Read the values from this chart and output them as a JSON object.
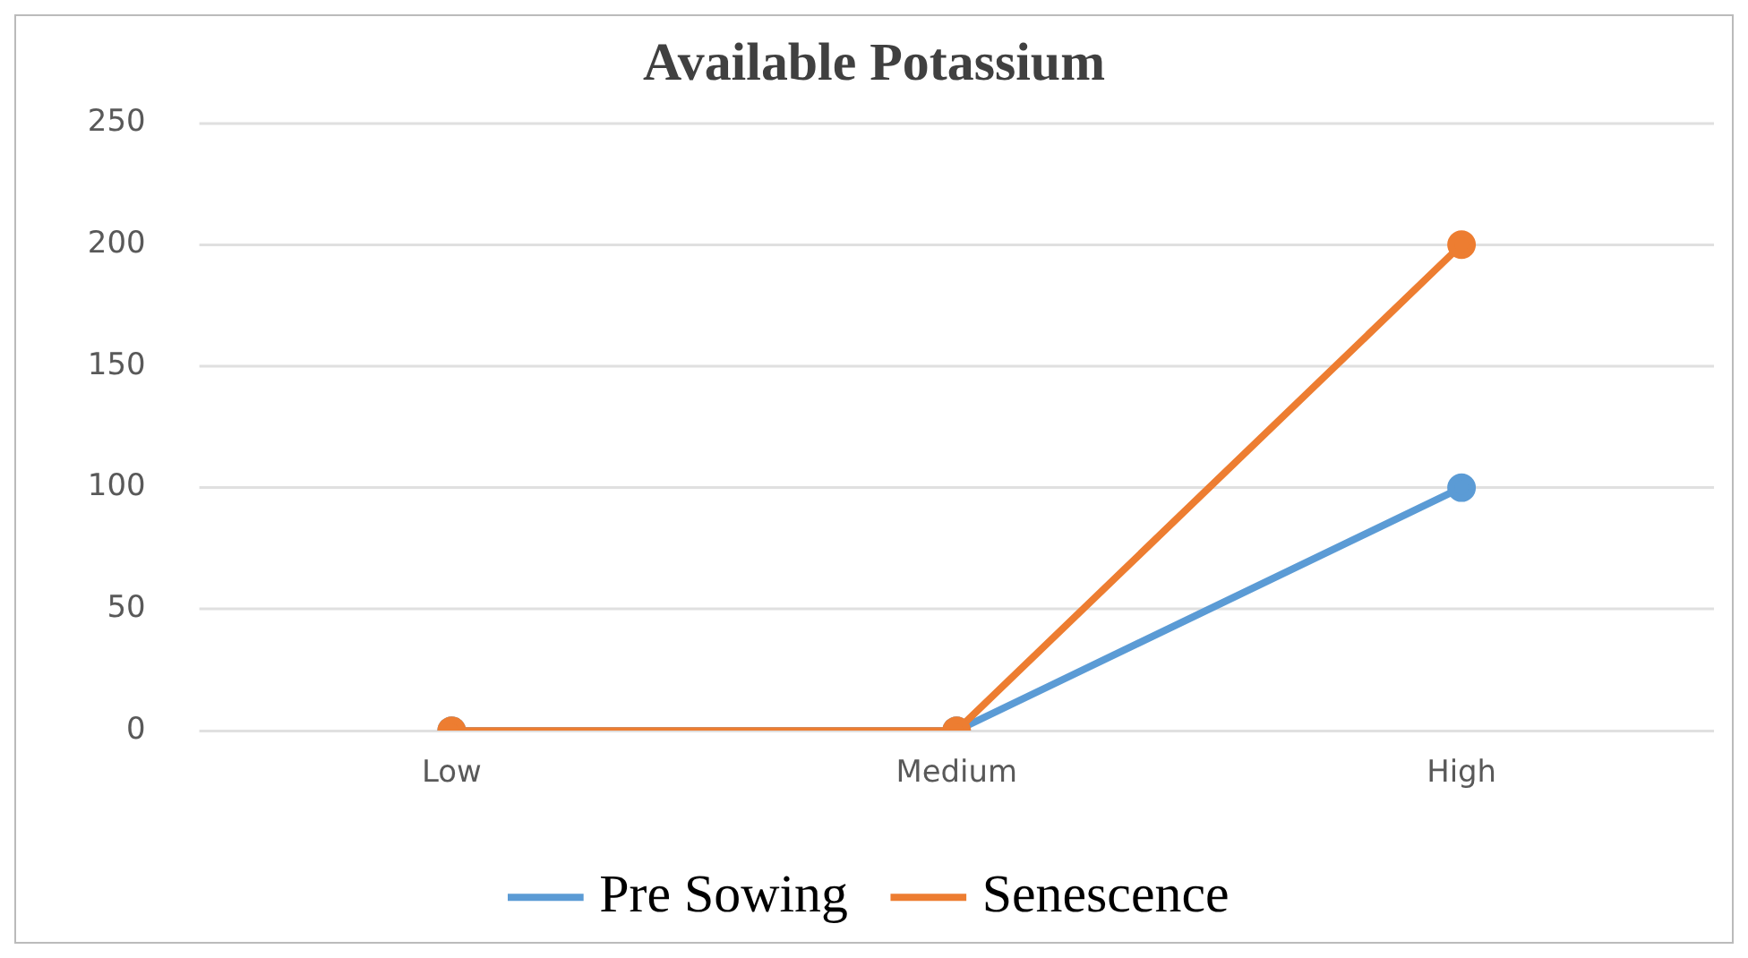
{
  "chart_data": {
    "type": "line",
    "title": "Available Potassium",
    "categories": [
      "Low",
      "Medium",
      "High"
    ],
    "series": [
      {
        "name": "Pre Sowing",
        "color": "#5b9bd5",
        "values": [
          0,
          0,
          100
        ]
      },
      {
        "name": "Senescence",
        "color": "#ed7d31",
        "values": [
          0,
          0,
          200
        ]
      }
    ],
    "ylim": [
      0,
      250
    ],
    "yticks": [
      0,
      50,
      100,
      150,
      200,
      250
    ],
    "grid": "y",
    "legend": "bottom",
    "marker": "circle",
    "line_style": "solid"
  }
}
